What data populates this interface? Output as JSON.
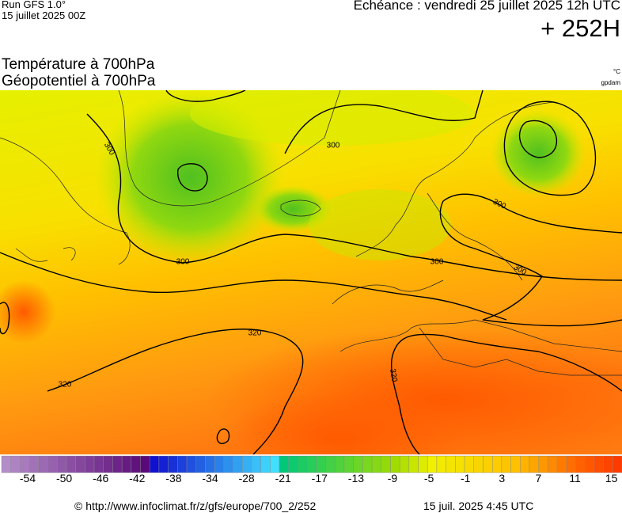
{
  "header": {
    "run": "Run GFS 1.0°",
    "run_date": "15 juillet 2025 00Z",
    "valid": "Echéance : vendredi 25 juillet 2025 12h UTC",
    "lead": "+ 252H"
  },
  "titles": {
    "line1": "Température à 700hPa",
    "line2": "Géopotentiel à 700hPa",
    "unit1": "°C",
    "unit2": "gpdam"
  },
  "map": {
    "contour_labels": [
      300,
      300,
      300,
      300,
      300,
      300,
      320,
      320,
      320
    ]
  },
  "scale": {
    "ticks": [
      -54,
      -50,
      -46,
      -42,
      -38,
      -34,
      -28,
      -21,
      -17,
      -13,
      -9,
      -5,
      -1,
      3,
      7,
      11,
      15
    ]
  },
  "footer": {
    "source": "© http://www.infoclimat.fr/z/gfs/europe/700_2/252",
    "generated": "15 juil. 2025  4:45 UTC"
  }
}
